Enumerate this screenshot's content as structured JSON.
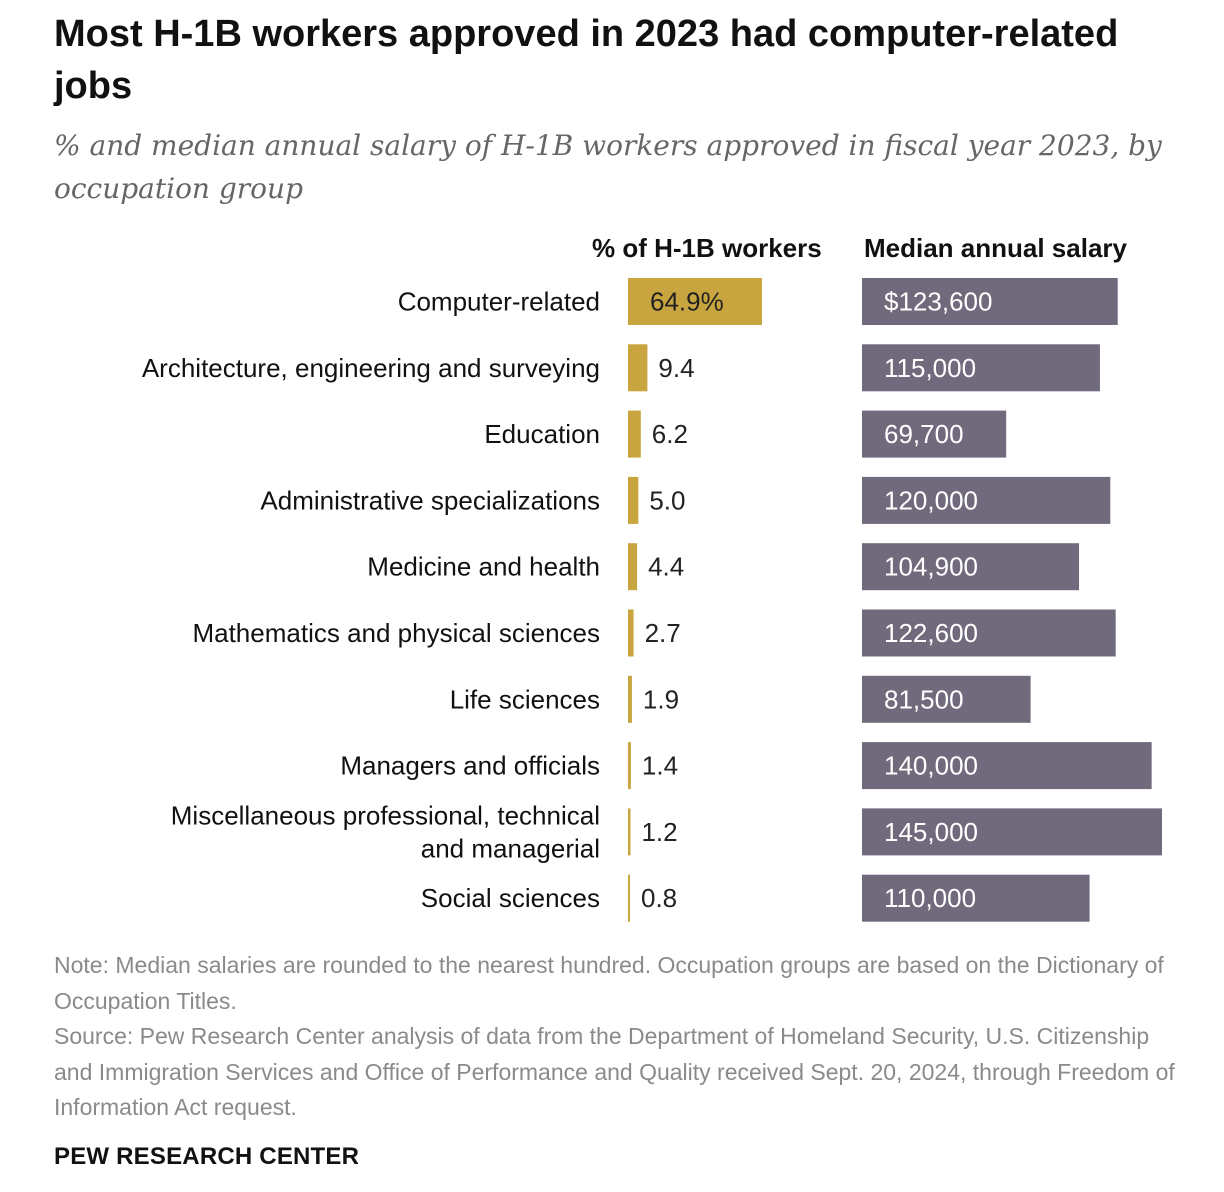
{
  "title": "Most H-1B workers approved in 2023 had computer-related jobs",
  "subtitle": "% and median annual salary of H-1B workers approved in fiscal year 2023, by occupation group",
  "colors": {
    "pct_bar": "#c9a53f",
    "salary_bar": "#716a7c",
    "salary_label": "#ffffff",
    "pct_label": "#222222",
    "note_text": "#8a8a8a"
  },
  "chart_data": [
    {
      "type": "bar",
      "orientation": "horizontal",
      "title": "% of H-1B workers",
      "categories": [
        "Computer-related",
        "Architecture, engineering and surveying",
        "Education",
        "Administrative specializations",
        "Medicine and health",
        "Mathematics and physical sciences",
        "Life sciences",
        "Managers and officials",
        "Miscellaneous professional, technical and managerial",
        "Social sciences"
      ],
      "values": [
        64.9,
        9.4,
        6.2,
        5.0,
        4.4,
        2.7,
        1.9,
        1.4,
        1.2,
        0.8
      ],
      "data_labels": [
        "64.9%",
        "9.4",
        "6.2",
        "5.0",
        "4.4",
        "2.7",
        "1.9",
        "1.4",
        "1.2",
        "0.8"
      ]
    },
    {
      "type": "bar",
      "orientation": "horizontal",
      "title": "Median annual salary",
      "categories": [
        "Computer-related",
        "Architecture, engineering and surveying",
        "Education",
        "Administrative specializations",
        "Medicine and health",
        "Mathematics and physical sciences",
        "Life sciences",
        "Managers and officials",
        "Miscellaneous professional, technical and managerial",
        "Social sciences"
      ],
      "values": [
        123600,
        115000,
        69700,
        120000,
        104900,
        122600,
        81500,
        140000,
        145000,
        110000
      ],
      "data_labels": [
        "$123,600",
        "115,000",
        "69,700",
        "120,000",
        "104,900",
        "122,600",
        "81,500",
        "140,000",
        "145,000",
        "110,000"
      ]
    }
  ],
  "category_lines": [
    [
      "Computer-related"
    ],
    [
      "Architecture, engineering and surveying"
    ],
    [
      "Education"
    ],
    [
      "Administrative specializations"
    ],
    [
      "Medicine and health"
    ],
    [
      "Mathematics and physical sciences"
    ],
    [
      "Life sciences"
    ],
    [
      "Managers and officials"
    ],
    [
      "Miscellaneous professional, technical",
      "and managerial"
    ],
    [
      "Social sciences"
    ]
  ],
  "note": "Note: Median salaries are rounded to the nearest hundred. Occupation groups are based on the Dictionary of Occupation Titles.",
  "source": "Source: Pew Research Center analysis of data from the Department of Homeland Security, U.S. Citizenship and Immigration Services and Office of Performance and Quality received Sept. 20, 2024, through Freedom of Information Act request.",
  "brand": "PEW RESEARCH CENTER"
}
